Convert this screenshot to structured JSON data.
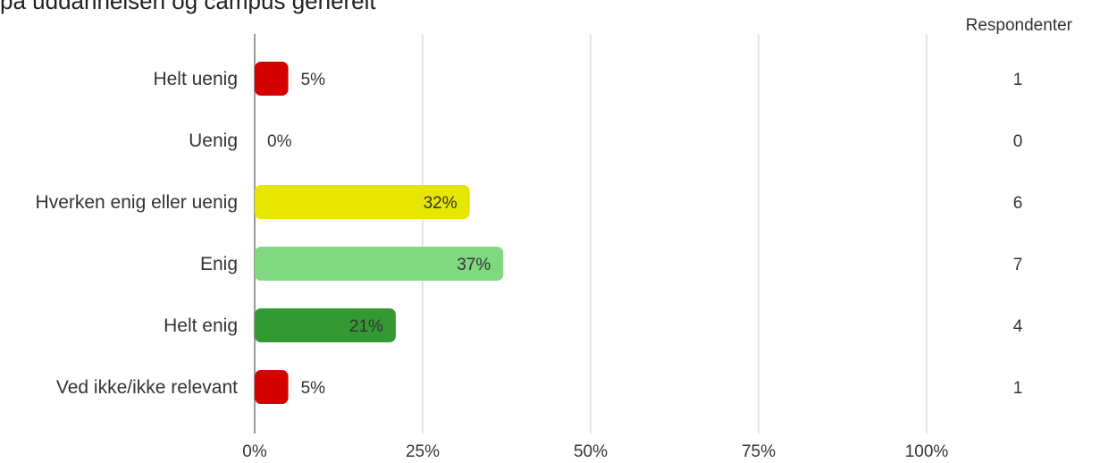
{
  "chart_data": {
    "type": "bar",
    "orientation": "horizontal",
    "title": "på uddannelsen og campus generelt",
    "xlabel": "",
    "ylabel": "",
    "xlim": [
      0,
      100
    ],
    "x_ticks": [
      "0%",
      "25%",
      "50%",
      "75%",
      "100%"
    ],
    "grid": true,
    "categories": [
      "Helt uenig",
      "Uenig",
      "Hverken enig eller uenig",
      "Enig",
      "Helt enig",
      "Ved ikke/ikke relevant"
    ],
    "values": [
      5,
      0,
      32,
      37,
      21,
      5
    ],
    "value_labels": [
      "5%",
      "0%",
      "32%",
      "37%",
      "21%",
      "5%"
    ],
    "colors": [
      "#d40000",
      "#d40000",
      "#e6e600",
      "#80d880",
      "#339933",
      "#d40000"
    ],
    "label_colors": [
      "#333333",
      "#333333",
      "#222222",
      "#222222",
      "#ffffff",
      "#333333"
    ],
    "respondents_header": "Respondenter",
    "respondents": [
      "1",
      "0",
      "6",
      "7",
      "4",
      "1"
    ]
  }
}
